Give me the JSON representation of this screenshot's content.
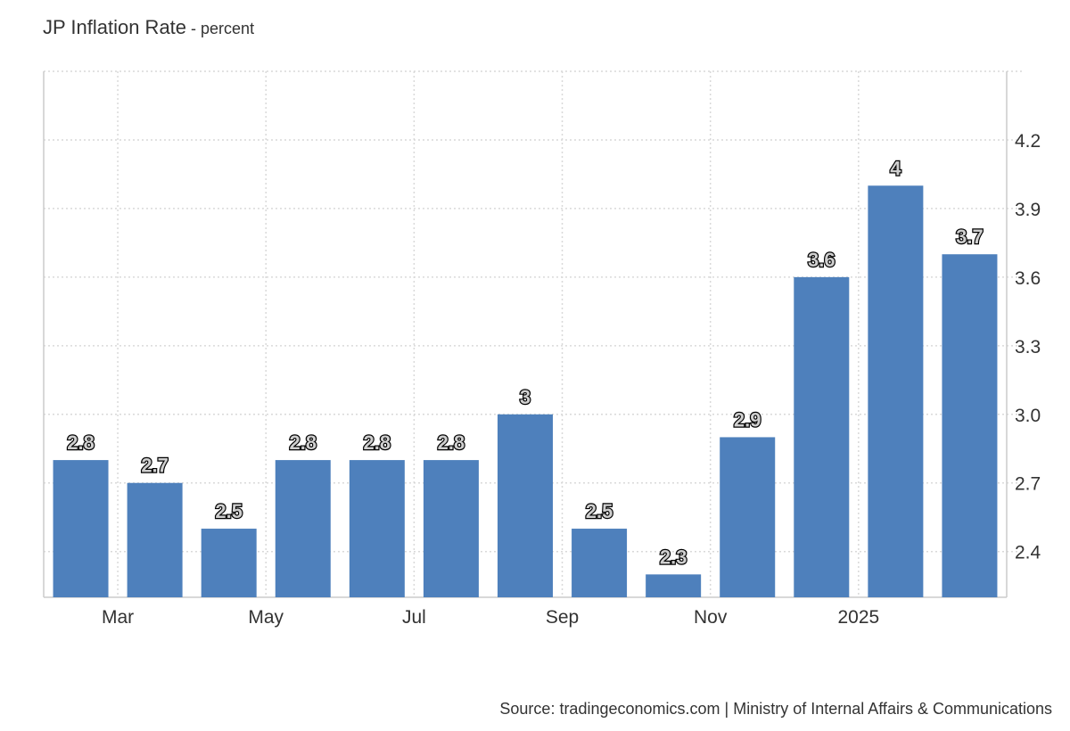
{
  "title": {
    "main": "JP Inflation Rate",
    "unit_suffix": " - percent"
  },
  "source_text": "Source: tradingeconomics.com | Ministry of Internal Affairs & Communications",
  "chart_data": {
    "type": "bar",
    "title": "JP Inflation Rate",
    "unit": "percent",
    "categories": [
      "2024-02",
      "2024-03",
      "2024-04",
      "2024-05",
      "2024-06",
      "2024-07",
      "2024-08",
      "2024-09",
      "2024-10",
      "2024-11",
      "2024-12",
      "2025-01",
      "2025-02"
    ],
    "values": [
      2.8,
      2.7,
      2.5,
      2.8,
      2.8,
      2.8,
      3.0,
      2.5,
      2.3,
      2.9,
      3.6,
      4.0,
      3.7
    ],
    "data_labels": [
      "2.8",
      "2.7",
      "2.5",
      "2.8",
      "2.8",
      "2.8",
      "3",
      "2.5",
      "2.3",
      "2.9",
      "3.6",
      "4",
      "3.7"
    ],
    "x_ticks": [
      {
        "category": "2024-03",
        "label": "Mar"
      },
      {
        "category": "2024-05",
        "label": "May"
      },
      {
        "category": "2024-07",
        "label": "Jul"
      },
      {
        "category": "2024-09",
        "label": "Sep"
      },
      {
        "category": "2024-11",
        "label": "Nov"
      },
      {
        "category": "2025-01",
        "label": "2025"
      }
    ],
    "y_ticks": [
      2.4,
      2.7,
      3.0,
      3.3,
      3.6,
      3.9,
      4.2
    ],
    "y_tick_labels": [
      "2.4",
      "2.7",
      "3.0",
      "3.3",
      "3.6",
      "3.9",
      "4.2"
    ],
    "ylim": [
      2.2,
      4.5
    ],
    "y_axis_position": "right",
    "grid": true,
    "colors": {
      "bar": "#4e80bc",
      "grid": "#d9d9d9",
      "axis": "#cccccc",
      "label_fill": "#cfcfcf",
      "label_stroke": "#000000"
    }
  }
}
